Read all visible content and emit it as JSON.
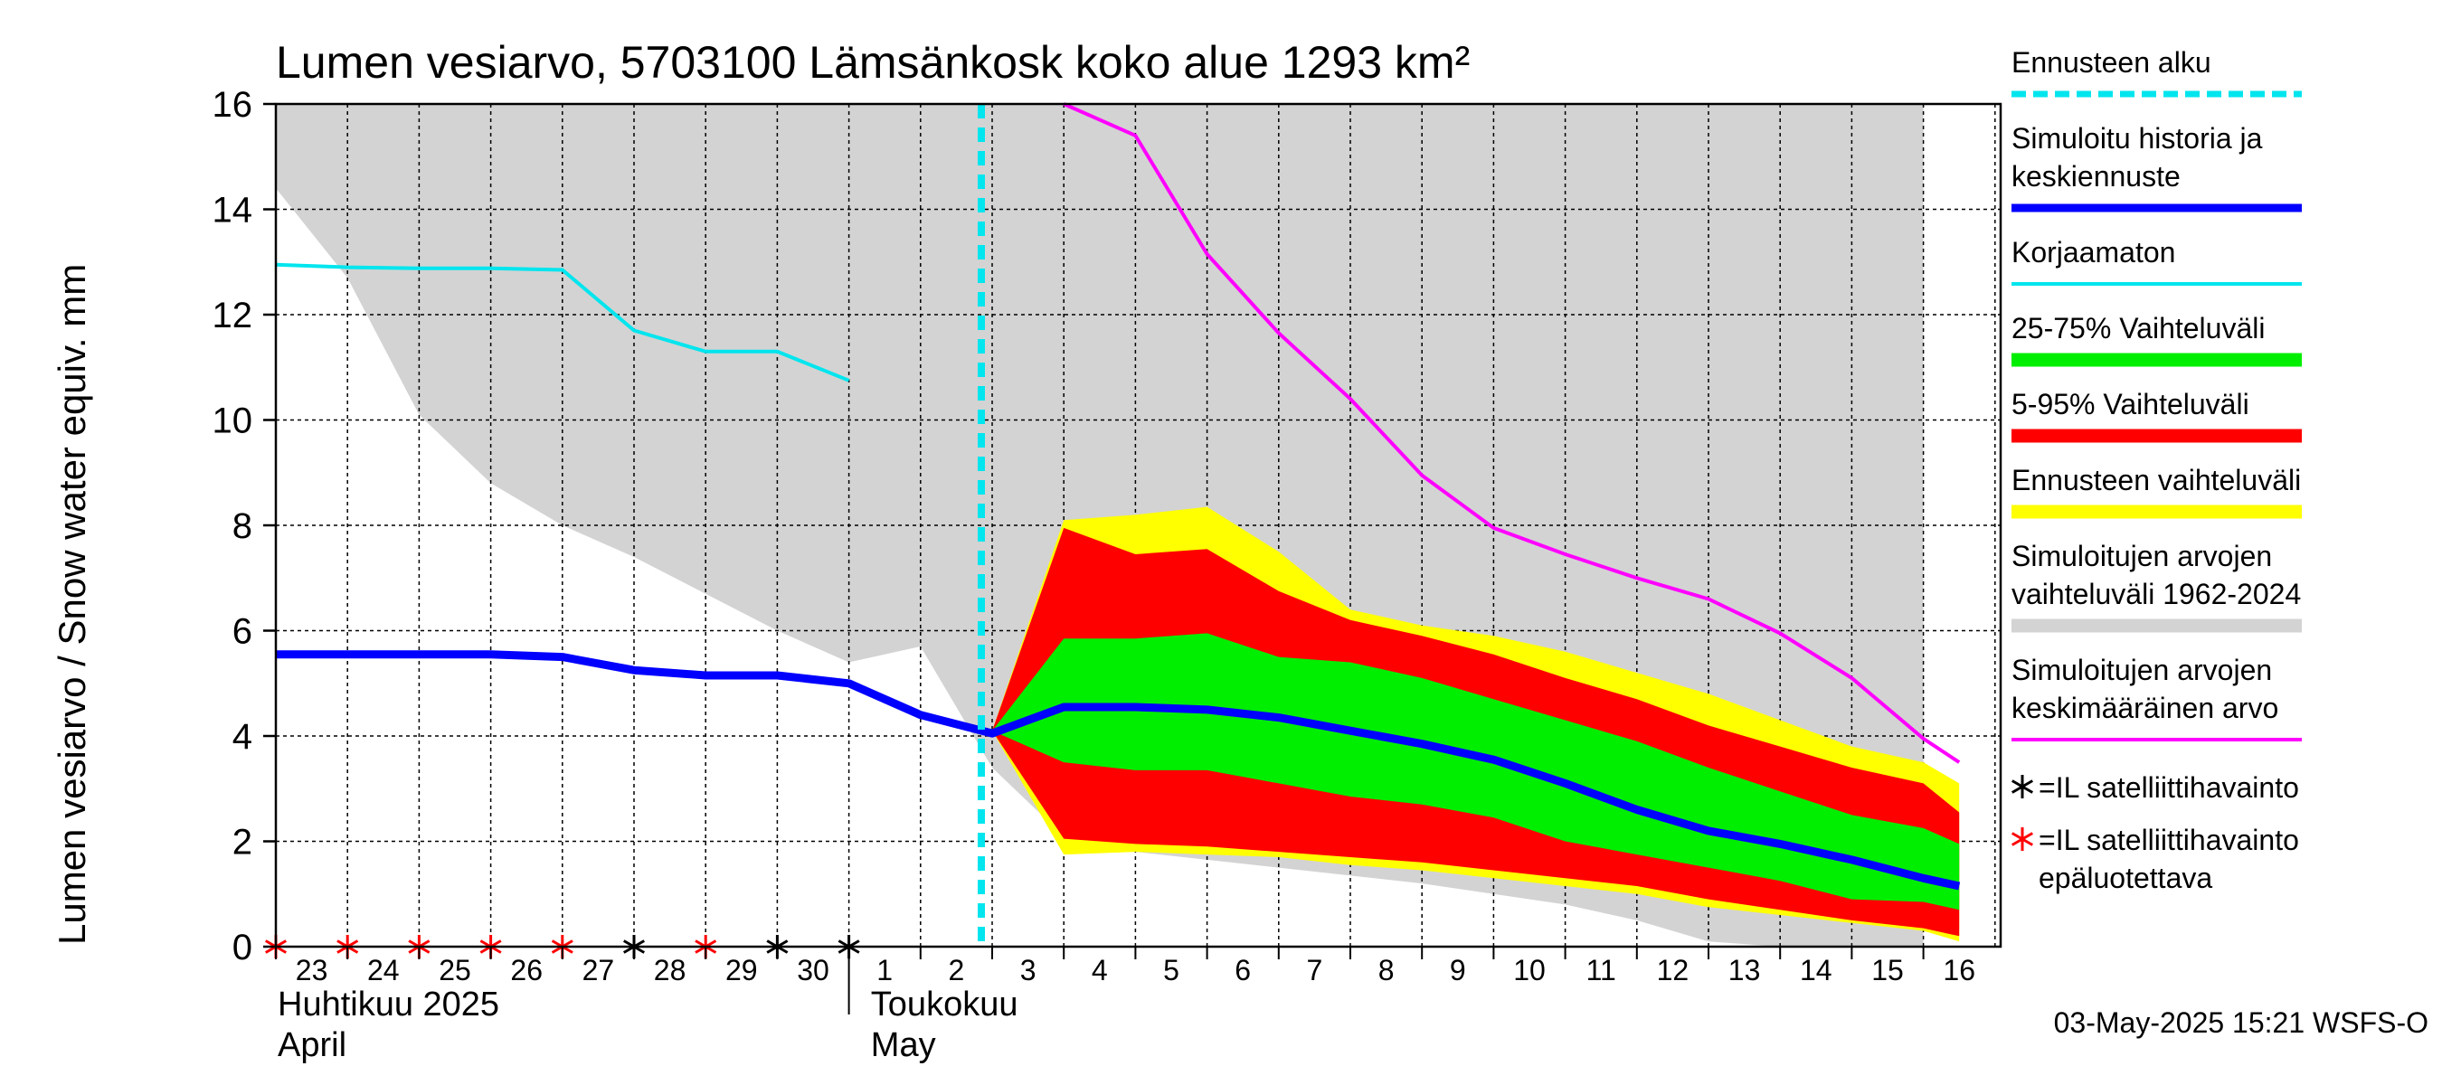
{
  "chart_data": {
    "type": "area",
    "title": "Lumen vesiarvo, 5703100 Lämsänkosk koko alue 1293 km²",
    "ylabel": "Lumen vesiarvo / Snow water equiv.    mm",
    "ylim": [
      0,
      16
    ],
    "yticks": [
      0,
      2,
      4,
      6,
      8,
      10,
      12,
      14,
      16
    ],
    "grid": true,
    "legend_position": "right",
    "x_start": "2025-04-23",
    "x_end": "2025-05-16",
    "forecast_start": "2025-05-03",
    "day_labels": [
      {
        "date": "2025-04-23",
        "label": "23"
      },
      {
        "date": "2025-04-24",
        "label": "24"
      },
      {
        "date": "2025-04-25",
        "label": "25"
      },
      {
        "date": "2025-04-26",
        "label": "26"
      },
      {
        "date": "2025-04-27",
        "label": "27"
      },
      {
        "date": "2025-04-28",
        "label": "28"
      },
      {
        "date": "2025-04-29",
        "label": "29"
      },
      {
        "date": "2025-04-30",
        "label": "30"
      },
      {
        "date": "2025-05-01",
        "label": "1"
      },
      {
        "date": "2025-05-02",
        "label": "2"
      },
      {
        "date": "2025-05-03",
        "label": "3"
      },
      {
        "date": "2025-05-04",
        "label": "4"
      },
      {
        "date": "2025-05-05",
        "label": "5"
      },
      {
        "date": "2025-05-06",
        "label": "6"
      },
      {
        "date": "2025-05-07",
        "label": "7"
      },
      {
        "date": "2025-05-08",
        "label": "8"
      },
      {
        "date": "2025-05-09",
        "label": "9"
      },
      {
        "date": "2025-05-10",
        "label": "10"
      },
      {
        "date": "2025-05-11",
        "label": "11"
      },
      {
        "date": "2025-05-12",
        "label": "12"
      },
      {
        "date": "2025-05-13",
        "label": "13"
      },
      {
        "date": "2025-05-14",
        "label": "14"
      },
      {
        "date": "2025-05-15",
        "label": "15"
      },
      {
        "date": "2025-05-16",
        "label": "16"
      }
    ],
    "month_labels": [
      {
        "line1": "Huhtikuu  2025",
        "line2": "April"
      },
      {
        "line1": "Toukokuu",
        "line2": "May"
      }
    ],
    "colors": {
      "hist_range": "#d3d3d3",
      "forecast_range": "#ffff00",
      "p5_95": "#ff0000",
      "p25_75": "#00ee00",
      "median": "#0000ff",
      "uncorrected": "#00e5ee",
      "mean": "#ff00ff",
      "forecast_start_line": "#00e5ee",
      "obs_ok": "#000000",
      "obs_bad": "#ff0000"
    },
    "hist_range": {
      "upper": [
        {
          "x": "2025-04-23",
          "y": 16
        },
        {
          "x": "2025-05-16",
          "y": 16
        }
      ],
      "lower": [
        {
          "x": "2025-04-23",
          "y": 14.4
        },
        {
          "x": "2025-04-24",
          "y": 12.7
        },
        {
          "x": "2025-04-25",
          "y": 10.1
        },
        {
          "x": "2025-04-26",
          "y": 8.8
        },
        {
          "x": "2025-04-27",
          "y": 8.0
        },
        {
          "x": "2025-04-28",
          "y": 7.4
        },
        {
          "x": "2025-04-29",
          "y": 6.7
        },
        {
          "x": "2025-04-30",
          "y": 6.0
        },
        {
          "x": "2025-05-01",
          "y": 5.4
        },
        {
          "x": "2025-05-02",
          "y": 5.7
        },
        {
          "x": "2025-05-03",
          "y": 3.4
        },
        {
          "x": "2025-05-04",
          "y": 2.1
        },
        {
          "x": "2025-05-05",
          "y": 1.8
        },
        {
          "x": "2025-05-06",
          "y": 1.65
        },
        {
          "x": "2025-05-07",
          "y": 1.5
        },
        {
          "x": "2025-05-08",
          "y": 1.35
        },
        {
          "x": "2025-05-09",
          "y": 1.2
        },
        {
          "x": "2025-05-10",
          "y": 1.0
        },
        {
          "x": "2025-05-11",
          "y": 0.8
        },
        {
          "x": "2025-05-12",
          "y": 0.5
        },
        {
          "x": "2025-05-13",
          "y": 0.1
        },
        {
          "x": "2025-05-14",
          "y": 0
        },
        {
          "x": "2025-05-15",
          "y": 0
        },
        {
          "x": "2025-05-16",
          "y": 0
        }
      ]
    },
    "forecast_dates": [
      "2025-05-03",
      "2025-05-04",
      "2025-05-05",
      "2025-05-06",
      "2025-05-07",
      "2025-05-08",
      "2025-05-09",
      "2025-05-10",
      "2025-05-11",
      "2025-05-12",
      "2025-05-13",
      "2025-05-14",
      "2025-05-15",
      "2025-05-16",
      "2025-05-16T12:00"
    ],
    "forecast_range": {
      "upper": [
        4.1,
        8.1,
        8.2,
        8.35,
        7.5,
        6.4,
        6.1,
        5.9,
        5.6,
        5.2,
        4.8,
        4.3,
        3.8,
        3.5,
        3.1
      ],
      "lower": [
        4.1,
        1.75,
        1.8,
        1.75,
        1.7,
        1.55,
        1.45,
        1.3,
        1.15,
        1.0,
        0.75,
        0.6,
        0.45,
        0.3,
        0.1
      ]
    },
    "p5_95": {
      "upper": [
        4.1,
        7.95,
        7.45,
        7.55,
        6.75,
        6.2,
        5.9,
        5.55,
        5.1,
        4.7,
        4.2,
        3.8,
        3.4,
        3.1,
        2.55
      ],
      "lower": [
        4.1,
        2.05,
        1.95,
        1.9,
        1.8,
        1.7,
        1.6,
        1.45,
        1.3,
        1.15,
        0.9,
        0.7,
        0.5,
        0.35,
        0.2
      ]
    },
    "p25_75": {
      "upper": [
        4.1,
        5.85,
        5.85,
        5.95,
        5.5,
        5.4,
        5.1,
        4.7,
        4.3,
        3.9,
        3.4,
        2.95,
        2.5,
        2.25,
        1.95
      ],
      "lower": [
        4.1,
        3.5,
        3.35,
        3.35,
        3.1,
        2.85,
        2.7,
        2.45,
        2.0,
        1.75,
        1.5,
        1.25,
        0.9,
        0.85,
        0.7
      ]
    },
    "median": [
      {
        "x": "2025-04-23",
        "y": 5.55
      },
      {
        "x": "2025-04-24",
        "y": 5.55
      },
      {
        "x": "2025-04-25",
        "y": 5.55
      },
      {
        "x": "2025-04-26",
        "y": 5.55
      },
      {
        "x": "2025-04-27",
        "y": 5.5
      },
      {
        "x": "2025-04-28",
        "y": 5.25
      },
      {
        "x": "2025-04-29",
        "y": 5.15
      },
      {
        "x": "2025-04-30",
        "y": 5.15
      },
      {
        "x": "2025-05-01",
        "y": 5.0
      },
      {
        "x": "2025-05-02",
        "y": 4.4
      },
      {
        "x": "2025-05-03",
        "y": 4.05
      },
      {
        "x": "2025-05-04",
        "y": 4.55
      },
      {
        "x": "2025-05-05",
        "y": 4.55
      },
      {
        "x": "2025-05-06",
        "y": 4.5
      },
      {
        "x": "2025-05-07",
        "y": 4.35
      },
      {
        "x": "2025-05-08",
        "y": 4.1
      },
      {
        "x": "2025-05-09",
        "y": 3.85
      },
      {
        "x": "2025-05-10",
        "y": 3.55
      },
      {
        "x": "2025-05-11",
        "y": 3.1
      },
      {
        "x": "2025-05-12",
        "y": 2.6
      },
      {
        "x": "2025-05-13",
        "y": 2.2
      },
      {
        "x": "2025-05-14",
        "y": 1.95
      },
      {
        "x": "2025-05-15",
        "y": 1.65
      },
      {
        "x": "2025-05-16",
        "y": 1.3
      },
      {
        "x": "2025-05-16T12:00",
        "y": 1.15
      }
    ],
    "uncorrected": [
      {
        "x": "2025-04-23",
        "y": 12.95
      },
      {
        "x": "2025-04-24",
        "y": 12.9
      },
      {
        "x": "2025-04-25",
        "y": 12.88
      },
      {
        "x": "2025-04-26",
        "y": 12.88
      },
      {
        "x": "2025-04-27",
        "y": 12.85
      },
      {
        "x": "2025-04-28",
        "y": 11.7
      },
      {
        "x": "2025-04-29",
        "y": 11.3
      },
      {
        "x": "2025-04-30",
        "y": 11.3
      },
      {
        "x": "2025-05-01",
        "y": 10.75
      }
    ],
    "mean": [
      {
        "x": "2025-05-04",
        "y": 16.0
      },
      {
        "x": "2025-05-05",
        "y": 15.4
      },
      {
        "x": "2025-05-06",
        "y": 13.15
      },
      {
        "x": "2025-05-07",
        "y": 11.65
      },
      {
        "x": "2025-05-08",
        "y": 10.4
      },
      {
        "x": "2025-05-09",
        "y": 8.95
      },
      {
        "x": "2025-05-10",
        "y": 7.95
      },
      {
        "x": "2025-05-11",
        "y": 7.45
      },
      {
        "x": "2025-05-12",
        "y": 7.0
      },
      {
        "x": "2025-05-13",
        "y": 6.6
      },
      {
        "x": "2025-05-14",
        "y": 5.95
      },
      {
        "x": "2025-05-15",
        "y": 5.1
      },
      {
        "x": "2025-05-16",
        "y": 3.95
      },
      {
        "x": "2025-05-16T12:00",
        "y": 3.5
      }
    ],
    "observations": [
      {
        "date": "2025-04-23",
        "reliable": false
      },
      {
        "date": "2025-04-24",
        "reliable": false
      },
      {
        "date": "2025-04-25",
        "reliable": false
      },
      {
        "date": "2025-04-26",
        "reliable": false
      },
      {
        "date": "2025-04-27",
        "reliable": false
      },
      {
        "date": "2025-04-28",
        "reliable": true
      },
      {
        "date": "2025-04-29",
        "reliable": false
      },
      {
        "date": "2025-04-30",
        "reliable": true
      },
      {
        "date": "2025-05-01",
        "reliable": true
      }
    ],
    "legend": [
      {
        "key": "forecast_start",
        "lines": [
          "Ennusteen alku"
        ],
        "style": "dashed",
        "color": "#00e5ee"
      },
      {
        "key": "median",
        "lines": [
          "Simuloitu historia ja",
          "keskiennuste"
        ],
        "style": "thick",
        "color": "#0000ff"
      },
      {
        "key": "uncorrected",
        "lines": [
          "Korjaamaton"
        ],
        "style": "thin",
        "color": "#00e5ee"
      },
      {
        "key": "p25_75",
        "lines": [
          "25-75% Vaihteluväli"
        ],
        "style": "band",
        "color": "#00ee00"
      },
      {
        "key": "p5_95",
        "lines": [
          "5-95% Vaihteluväli"
        ],
        "style": "band",
        "color": "#ff0000"
      },
      {
        "key": "forecast_range",
        "lines": [
          "Ennusteen vaihteluväli"
        ],
        "style": "band",
        "color": "#ffff00"
      },
      {
        "key": "hist_range",
        "lines": [
          "Simuloitujen arvojen",
          "vaihteluväli 1962-2024"
        ],
        "style": "band",
        "color": "#d3d3d3"
      },
      {
        "key": "mean",
        "lines": [
          "Simuloitujen arvojen",
          "keskimääräinen arvo"
        ],
        "style": "thin",
        "color": "#ff00ff"
      },
      {
        "key": "obs_ok",
        "lines": [
          "=IL satelliittihavainto"
        ],
        "style": "marker",
        "color": "#000000"
      },
      {
        "key": "obs_bad",
        "lines": [
          "=IL satelliittihavainto",
          "epäluotettava"
        ],
        "style": "marker",
        "color": "#ff0000"
      }
    ]
  },
  "footer": {
    "timestamp": "03-May-2025 15:21 WSFS-O"
  }
}
